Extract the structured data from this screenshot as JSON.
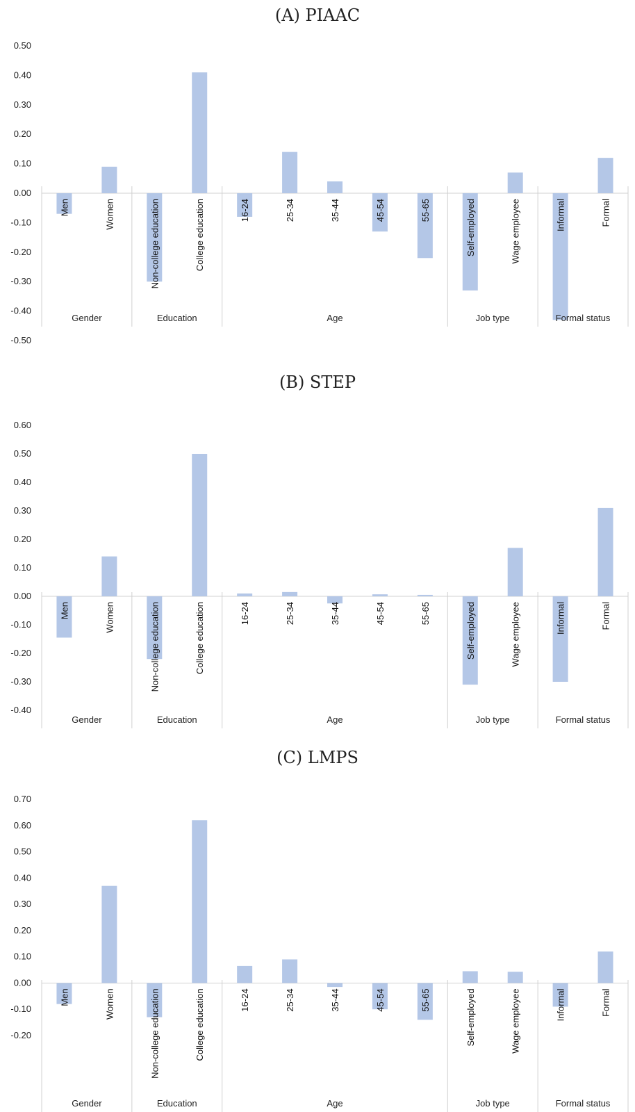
{
  "bar_color": "#b4c7e7",
  "axis_color": "#d0d0d0",
  "chart_data": [
    {
      "type": "bar",
      "title": "(A) PIAAC",
      "xlabel": "",
      "ylabel": "",
      "ylim": [
        -0.5,
        0.5
      ],
      "ticks": [
        "0.50",
        "0.40",
        "0.30",
        "0.20",
        "0.10",
        "0.00",
        "-0.10",
        "-0.20",
        "-0.30",
        "-0.40",
        "-0.50"
      ],
      "categories": [
        "Men",
        "Women",
        "Non-college education",
        "College education",
        "16-24",
        "25-34",
        "35-44",
        "45-54",
        "55-65",
        "Self-employed",
        "Wage employee",
        "Informal",
        "Formal"
      ],
      "values": [
        -0.07,
        0.09,
        -0.3,
        0.41,
        -0.08,
        0.14,
        0.04,
        -0.13,
        -0.22,
        -0.33,
        0.07,
        -0.43,
        0.12
      ],
      "groups": [
        {
          "label": "Gender",
          "count": 2
        },
        {
          "label": "Education",
          "count": 2
        },
        {
          "label": "Age",
          "count": 5
        },
        {
          "label": "Job type",
          "count": 2
        },
        {
          "label": "Formal status",
          "count": 2
        }
      ],
      "grid": false,
      "legend": "none"
    },
    {
      "type": "bar",
      "title": "(B) STEP",
      "xlabel": "",
      "ylabel": "",
      "ylim": [
        -0.4,
        0.6
      ],
      "ticks": [
        "0.60",
        "0.50",
        "0.40",
        "0.30",
        "0.20",
        "0.10",
        "0.00",
        "-0.10",
        "-0.20",
        "-0.30",
        "-0.40"
      ],
      "categories": [
        "Men",
        "Women",
        "Non-college education",
        "College education",
        "16-24",
        "25-34",
        "35-44",
        "45-54",
        "55-65",
        "Self-employed",
        "Wage employee",
        "Informal",
        "Formal"
      ],
      "values": [
        -0.145,
        0.14,
        -0.22,
        0.5,
        0.01,
        0.015,
        -0.025,
        0.007,
        0.005,
        -0.31,
        0.17,
        -0.3,
        0.31
      ],
      "groups": [
        {
          "label": "Gender",
          "count": 2
        },
        {
          "label": "Education",
          "count": 2
        },
        {
          "label": "Age",
          "count": 5
        },
        {
          "label": "Job type",
          "count": 2
        },
        {
          "label": "Formal status",
          "count": 2
        }
      ],
      "grid": false,
      "legend": "none"
    },
    {
      "type": "bar",
      "title": "(C) LMPS",
      "xlabel": "",
      "ylabel": "",
      "ylim": [
        -0.2,
        0.7
      ],
      "ticks": [
        "0.70",
        "0.60",
        "0.50",
        "0.40",
        "0.30",
        "0.20",
        "0.10",
        "0.00",
        "-0.10",
        "-0.20"
      ],
      "categories": [
        "Men",
        "Women",
        "Non-college education",
        "College education",
        "16-24",
        "25-34",
        "35-44",
        "45-54",
        "55-65",
        "Self-employed",
        "Wage employee",
        "Informal",
        "Formal"
      ],
      "values": [
        -0.08,
        0.37,
        -0.13,
        0.62,
        0.065,
        0.09,
        -0.015,
        -0.1,
        -0.14,
        0.045,
        0.043,
        -0.09,
        0.12
      ],
      "groups": [
        {
          "label": "Gender",
          "count": 2
        },
        {
          "label": "Education",
          "count": 2
        },
        {
          "label": "Age",
          "count": 5
        },
        {
          "label": "Job type",
          "count": 2
        },
        {
          "label": "Formal status",
          "count": 2
        }
      ],
      "grid": false,
      "legend": "none"
    }
  ]
}
